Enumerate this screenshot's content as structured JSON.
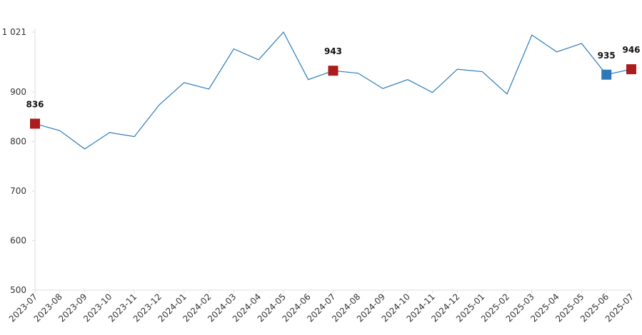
{
  "chart_data": {
    "type": "line",
    "categories": [
      "2023-07",
      "2023-08",
      "2023-09",
      "2023-10",
      "2023-11",
      "2023-12",
      "2024-01",
      "2024-02",
      "2024-03",
      "2024-04",
      "2024-05",
      "2024-06",
      "2024-07",
      "2024-08",
      "2024-09",
      "2024-10",
      "2024-11",
      "2024-12",
      "2025-01",
      "2025-02",
      "2025-03",
      "2025-04",
      "2025-05",
      "2025-06",
      "2025-07"
    ],
    "values": [
      836,
      822,
      785,
      818,
      810,
      874,
      919,
      906,
      987,
      965,
      1021,
      925,
      943,
      938,
      907,
      925,
      899,
      946,
      941,
      896,
      1015,
      981,
      998,
      935,
      946
    ],
    "color": "#2b7bba",
    "point_colors": [
      "#ac1c1c",
      null,
      null,
      null,
      null,
      null,
      null,
      null,
      null,
      null,
      null,
      null,
      "#ac1c1c",
      null,
      null,
      null,
      null,
      null,
      null,
      null,
      null,
      null,
      null,
      "#2e78b8",
      "#ac1c1c"
    ],
    "ylim": [
      500,
      1021
    ],
    "yticks": [
      500,
      600,
      700,
      800,
      900,
      {
        "value": 1021,
        "label": "1 021"
      }
    ]
  }
}
